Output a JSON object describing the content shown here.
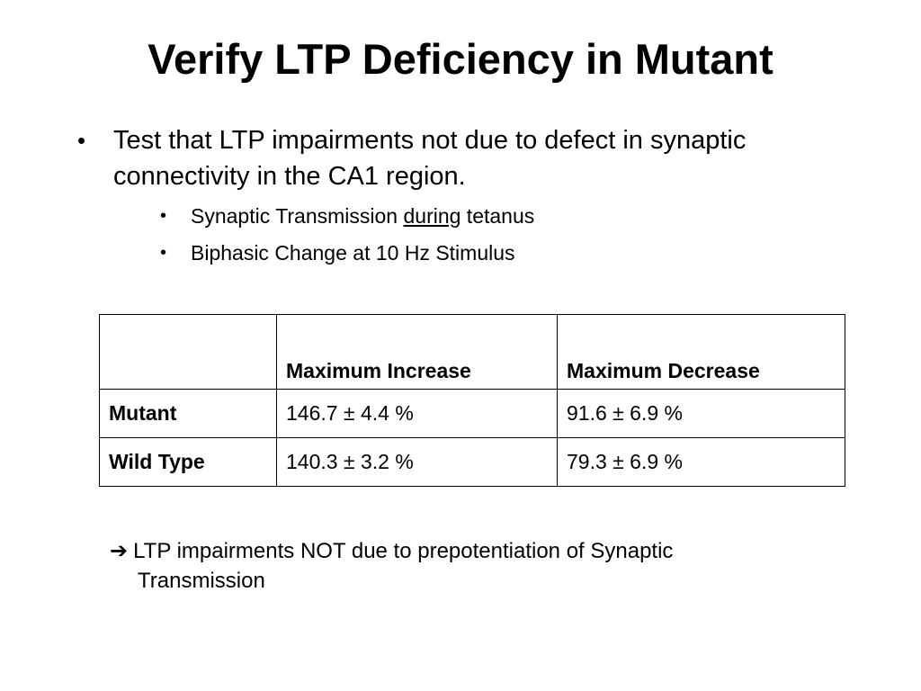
{
  "slide": {
    "title": "Verify LTP Deficiency in Mutant",
    "bullet": {
      "text": "Test that LTP impairments not due to defect in synaptic connectivity in the CA1 region.",
      "sub_bullets": [
        {
          "before": "Synaptic Transmission ",
          "underlined": "during",
          "after": " tetanus"
        },
        {
          "before": "Biphasic Change at 10 Hz Stimulus"
        }
      ]
    },
    "table": {
      "headers": [
        "",
        "Maximum Increase",
        "Maximum Decrease"
      ],
      "rows": [
        {
          "label": "Mutant",
          "increase": "146.7 ± 4.4 %",
          "decrease": "91.6 ± 6.9 %"
        },
        {
          "label": "Wild Type",
          "increase": "140.3 ± 3.2 %",
          "decrease": "79.3 ± 6.9 %"
        }
      ]
    },
    "conclusion": {
      "arrow": "➔",
      "line1": "LTP impairments NOT due to prepotentiation of Synaptic",
      "line2": "Transmission"
    }
  }
}
